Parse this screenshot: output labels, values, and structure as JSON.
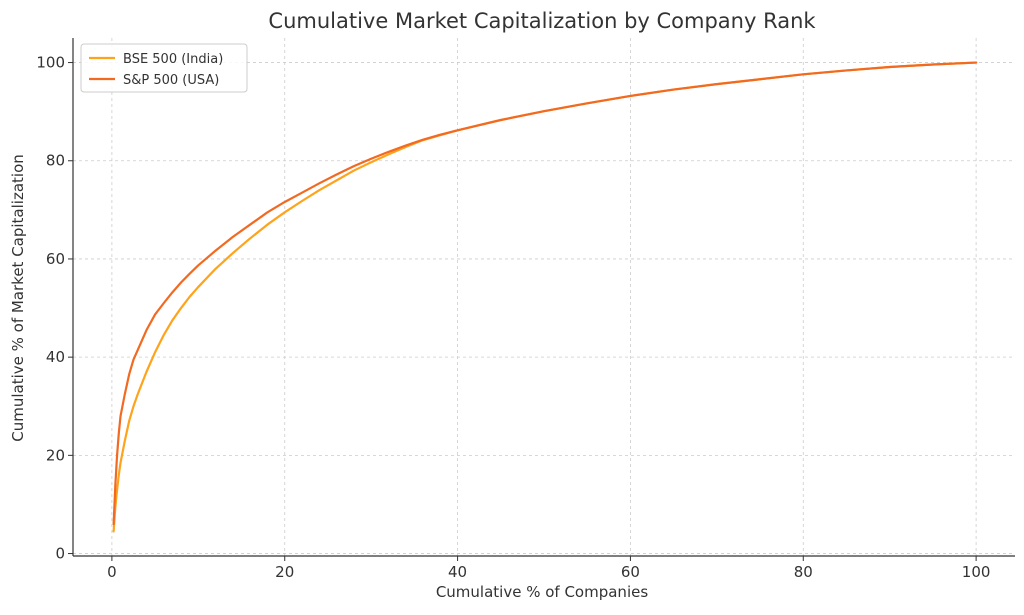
{
  "chart_data": {
    "type": "line",
    "title": "Cumulative Market Capitalization by Company Rank",
    "xlabel": "Cumulative % of Companies",
    "ylabel": "Cumulative % of Market Capitalization",
    "xlim": [
      -4.5,
      104.5
    ],
    "ylim": [
      -0.5,
      105
    ],
    "xticks": [
      0,
      20,
      40,
      60,
      80,
      100
    ],
    "yticks": [
      0,
      20,
      40,
      60,
      80,
      100
    ],
    "grid": true,
    "legend_position": "top-left",
    "series": [
      {
        "name": "BSE 500 (India)",
        "color": "#ffa31a",
        "points": [
          [
            0.2,
            4.5
          ],
          [
            0.4,
            9.5
          ],
          [
            0.6,
            13
          ],
          [
            0.8,
            16
          ],
          [
            1,
            18.5
          ],
          [
            1.5,
            23
          ],
          [
            2,
            27
          ],
          [
            2.5,
            30
          ],
          [
            3,
            32.5
          ],
          [
            4,
            37
          ],
          [
            5,
            41
          ],
          [
            6,
            44.5
          ],
          [
            7,
            47.5
          ],
          [
            8,
            50
          ],
          [
            9,
            52.3
          ],
          [
            10,
            54.3
          ],
          [
            12,
            58
          ],
          [
            14,
            61.2
          ],
          [
            16,
            64.2
          ],
          [
            18,
            67
          ],
          [
            20,
            69.5
          ],
          [
            22,
            71.8
          ],
          [
            24,
            74
          ],
          [
            26,
            76
          ],
          [
            28,
            78
          ],
          [
            30,
            79.7
          ],
          [
            32,
            81.3
          ],
          [
            34,
            82.8
          ],
          [
            36,
            84.2
          ],
          [
            38,
            85.2
          ],
          [
            40,
            86.2
          ],
          [
            45,
            88.3
          ],
          [
            50,
            90.1
          ],
          [
            55,
            91.7
          ],
          [
            60,
            93.2
          ],
          [
            65,
            94.5
          ],
          [
            70,
            95.6
          ],
          [
            75,
            96.6
          ],
          [
            80,
            97.6
          ],
          [
            85,
            98.4
          ],
          [
            90,
            99.1
          ],
          [
            95,
            99.6
          ],
          [
            100,
            100
          ]
        ]
      },
      {
        "name": "S&P 500 (USA)",
        "color": "#f26a21",
        "points": [
          [
            0.2,
            6
          ],
          [
            0.4,
            14
          ],
          [
            0.6,
            20
          ],
          [
            0.8,
            24.5
          ],
          [
            1,
            28
          ],
          [
            1.5,
            32.5
          ],
          [
            2,
            36.5
          ],
          [
            2.5,
            39.5
          ],
          [
            3,
            41.5
          ],
          [
            4,
            45.5
          ],
          [
            5,
            48.7
          ],
          [
            6,
            51
          ],
          [
            7,
            53.2
          ],
          [
            8,
            55.2
          ],
          [
            9,
            57
          ],
          [
            10,
            58.7
          ],
          [
            12,
            61.7
          ],
          [
            14,
            64.5
          ],
          [
            16,
            67
          ],
          [
            18,
            69.5
          ],
          [
            20,
            71.6
          ],
          [
            22,
            73.5
          ],
          [
            24,
            75.4
          ],
          [
            26,
            77.2
          ],
          [
            28,
            78.9
          ],
          [
            30,
            80.4
          ],
          [
            32,
            81.8
          ],
          [
            34,
            83.1
          ],
          [
            36,
            84.3
          ],
          [
            38,
            85.3
          ],
          [
            40,
            86.2
          ],
          [
            45,
            88.3
          ],
          [
            50,
            90.1
          ],
          [
            55,
            91.7
          ],
          [
            60,
            93.2
          ],
          [
            65,
            94.5
          ],
          [
            70,
            95.6
          ],
          [
            75,
            96.6
          ],
          [
            80,
            97.6
          ],
          [
            85,
            98.4
          ],
          [
            90,
            99.1
          ],
          [
            95,
            99.6
          ],
          [
            100,
            100
          ]
        ]
      }
    ]
  }
}
